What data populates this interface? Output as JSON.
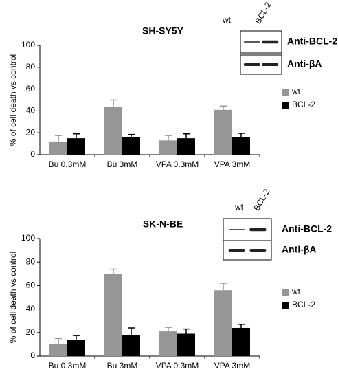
{
  "chart_data": [
    {
      "type": "bar",
      "title": "SH-SY5Y",
      "y_label": "% of cell death vs control",
      "categories": [
        "Bu 0.3mM",
        "Bu 3mM",
        "VPA 0.3mM",
        "VPA 3mM"
      ],
      "series": [
        {
          "name": "wt",
          "color": "#969696",
          "values": [
            12,
            44,
            13,
            41
          ],
          "errors": [
            5.5,
            6,
            4.5,
            3.5
          ]
        },
        {
          "name": "BCL-2",
          "color": "#000000",
          "values": [
            15,
            16,
            15,
            16
          ],
          "errors": [
            4,
            2.5,
            4,
            3.5
          ]
        }
      ],
      "ylim": [
        0,
        100
      ],
      "yticks": [
        0,
        20,
        40,
        60,
        80,
        100
      ],
      "grid": false,
      "blot": {
        "lanes": [
          "wt",
          "BCL-2"
        ],
        "rows": [
          "Anti-BCL-2",
          "Anti-βA"
        ]
      }
    },
    {
      "type": "bar",
      "title": "SK-N-BE",
      "y_label": "% of cell death vs control",
      "categories": [
        "Bu 0.3mM",
        "Bu 3mM",
        "VPA 0.3mM",
        "VPA 3mM"
      ],
      "series": [
        {
          "name": "wt",
          "color": "#969696",
          "values": [
            10,
            70,
            21,
            56
          ],
          "errors": [
            5,
            4,
            3.5,
            6
          ]
        },
        {
          "name": "BCL-2",
          "color": "#000000",
          "values": [
            14,
            18,
            19,
            24
          ],
          "errors": [
            3.5,
            6,
            4,
            3
          ]
        }
      ],
      "ylim": [
        0,
        100
      ],
      "yticks": [
        0,
        20,
        40,
        60,
        80,
        100
      ],
      "grid": false,
      "blot": {
        "lanes": [
          "wt",
          "BCL-2"
        ],
        "rows": [
          "Anti-BCL-2",
          "Anti-βA"
        ]
      }
    }
  ]
}
